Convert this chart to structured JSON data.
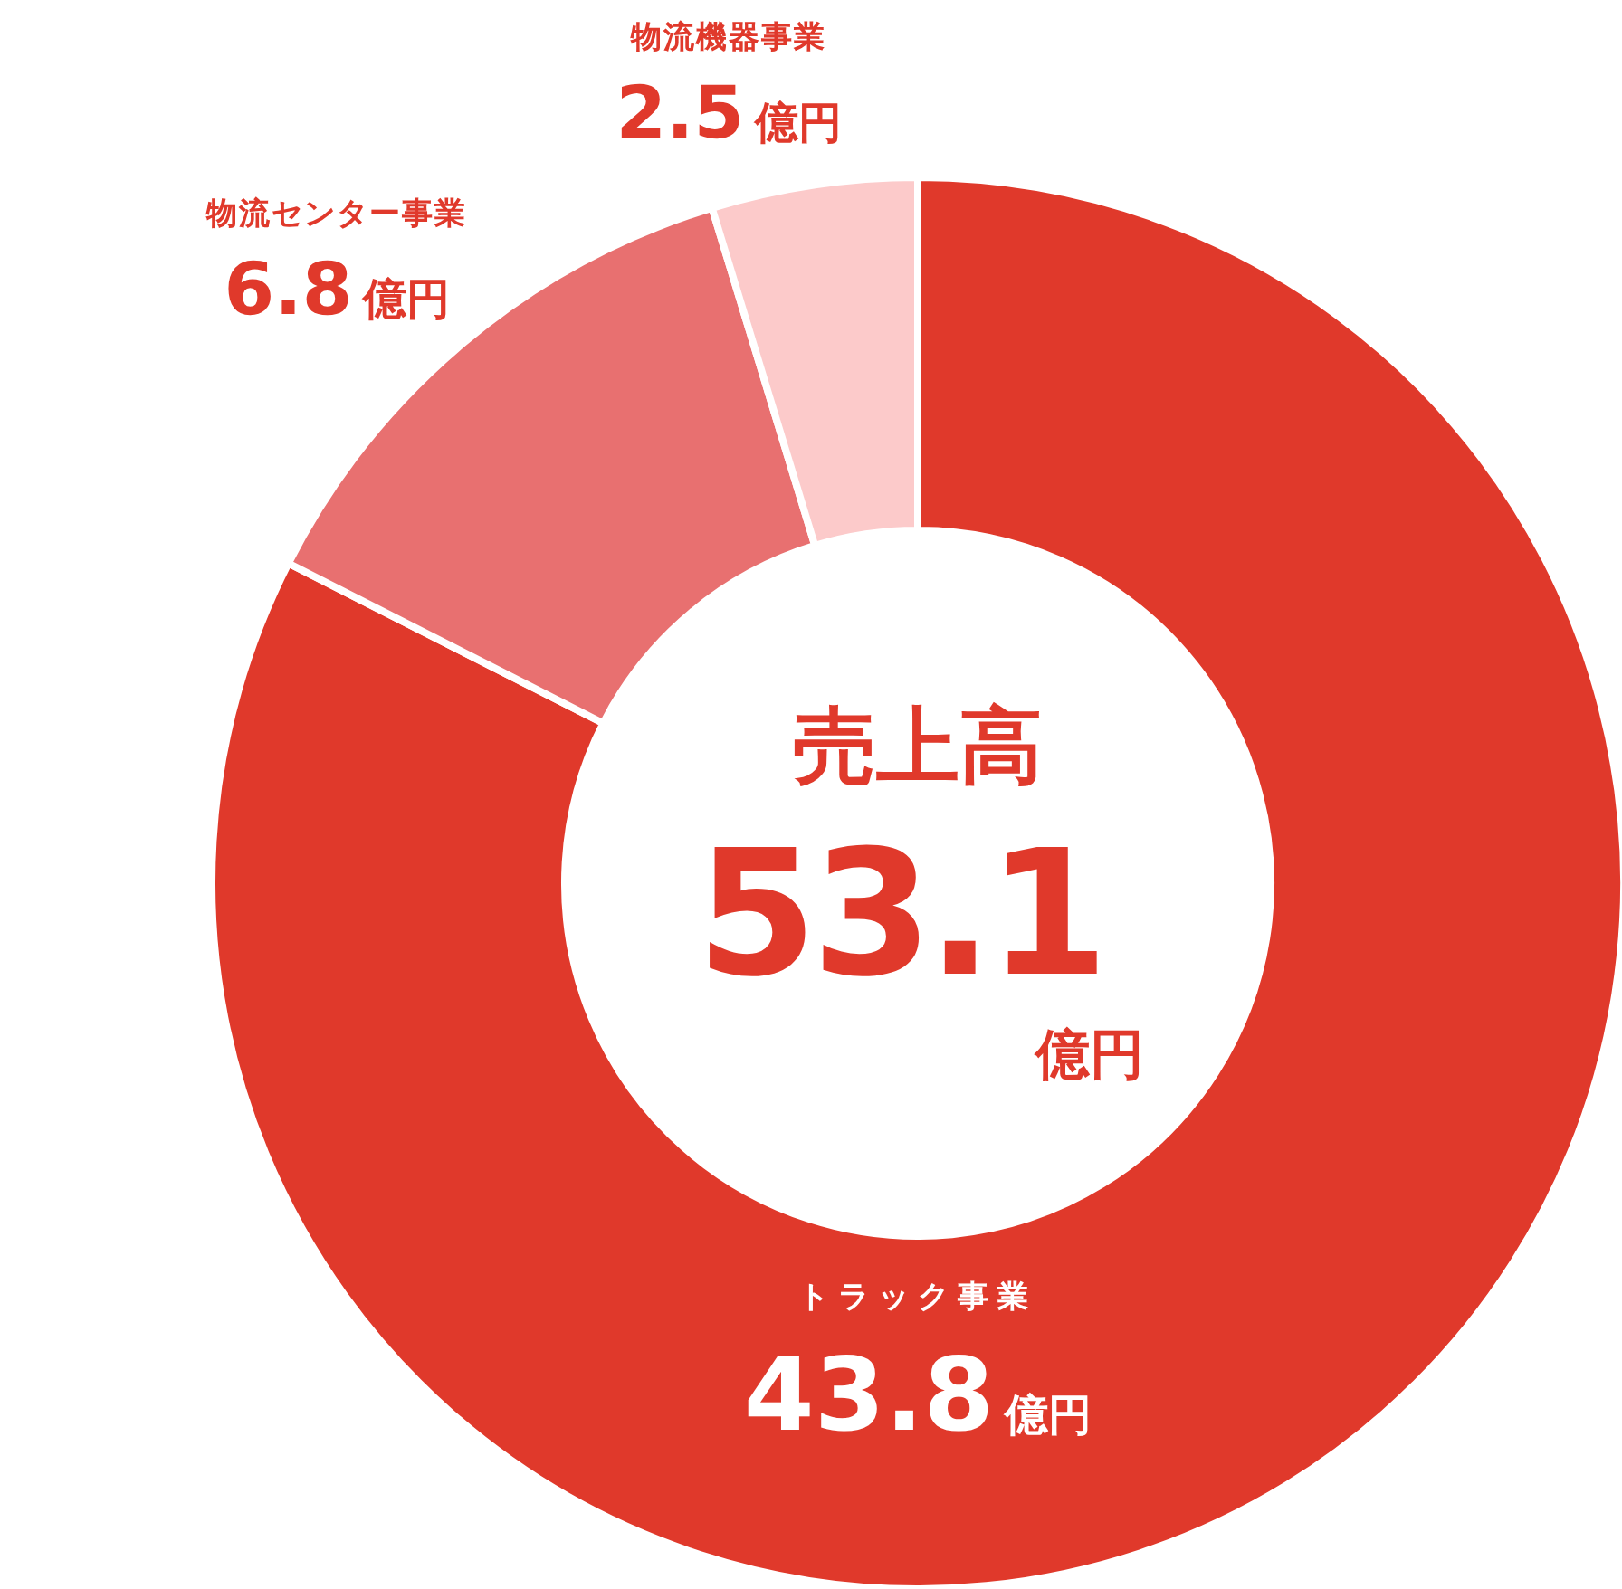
{
  "chart_data": {
    "type": "donut",
    "title": "売上高",
    "annotations": [
      "53.1億円"
    ],
    "categories": [
      "トラック事業",
      "物流センター事業",
      "物流機器事業"
    ],
    "values": [
      43.8,
      6.8,
      2.5
    ],
    "colors": [
      "#e0392b",
      "#e87070",
      "#fccaca"
    ],
    "value_labels": [
      "43.8億円",
      "6.8億円",
      "2.5億円"
    ]
  }
}
